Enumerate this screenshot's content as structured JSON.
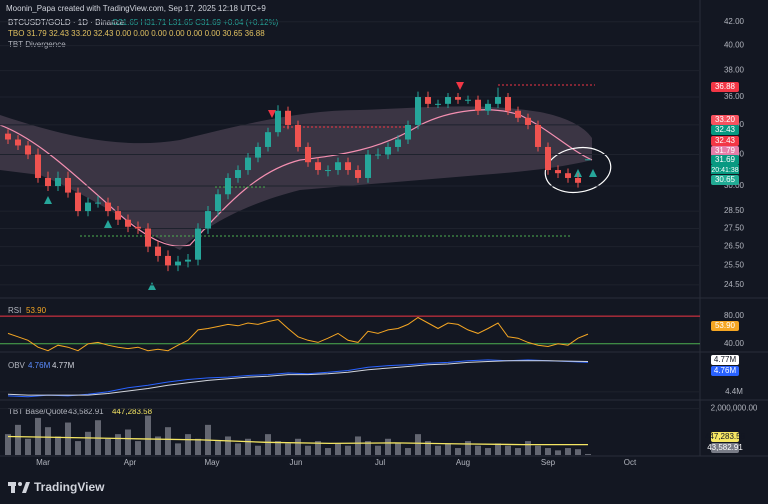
{
  "header": {
    "credit": "Moonin_Papa created with TradingView.com, Sep 17, 2025 12:18 UTC+9",
    "brand": "TradingView"
  },
  "chart_data": [
    {
      "type": "candlestick",
      "title": "BTCUSDT/GOLD · 1D · Binance",
      "ohlc_label": "O31.65 H31.71 L31.65 C31.69 +0.04 (+0.12%)",
      "indicators": [
        "TBO 31.79 32.43 33.20 32.43 0.00 0.00 0.00 0.00 0.00 0.00 30.65 36.88",
        "TBT Divergence"
      ],
      "open": [
        33.4,
        33.0,
        32.6,
        32.0,
        30.5,
        30.0,
        30.5,
        29.6,
        28.5,
        29.0,
        29.0,
        28.5,
        28.0,
        27.6,
        27.5,
        26.5,
        26.0,
        25.5,
        25.7,
        25.8,
        27.5,
        28.5,
        29.5,
        30.5,
        31.0,
        31.8,
        32.5,
        33.5,
        35.0,
        34.0,
        32.5,
        31.5,
        31.0,
        31.0,
        31.5,
        31.0,
        30.5,
        32.0,
        32.0,
        32.5,
        33.0,
        34.0,
        36.0,
        35.5,
        35.5,
        36.0,
        35.8,
        35.8,
        35.0,
        35.5,
        36.0,
        35.0,
        34.5,
        34.0,
        32.5,
        31.0,
        30.8,
        30.5,
        31.65
      ],
      "high": [
        33.7,
        33.3,
        32.9,
        32.4,
        30.9,
        30.9,
        30.9,
        29.9,
        29.3,
        29.4,
        29.3,
        28.8,
        28.3,
        27.9,
        27.8,
        26.8,
        26.3,
        26.0,
        26.1,
        27.8,
        28.8,
        29.8,
        30.8,
        31.3,
        32.1,
        32.8,
        33.8,
        35.4,
        35.3,
        34.3,
        32.8,
        31.8,
        31.3,
        31.8,
        31.8,
        31.3,
        32.3,
        32.4,
        32.8,
        33.3,
        34.3,
        36.4,
        36.4,
        35.8,
        36.3,
        36.3,
        36.1,
        36.1,
        35.8,
        36.7,
        36.3,
        35.3,
        34.8,
        34.3,
        32.8,
        31.3,
        31.1,
        30.8,
        31.71
      ],
      "low": [
        32.7,
        32.3,
        31.7,
        30.2,
        29.7,
        29.7,
        29.3,
        28.2,
        28.2,
        28.7,
        28.2,
        27.7,
        27.3,
        27.2,
        26.2,
        25.7,
        25.2,
        25.2,
        25.4,
        25.5,
        27.2,
        28.2,
        29.2,
        30.2,
        30.7,
        31.5,
        32.2,
        33.2,
        33.7,
        32.2,
        31.2,
        30.7,
        30.6,
        30.7,
        30.7,
        30.2,
        30.2,
        31.7,
        31.7,
        32.2,
        32.7,
        33.7,
        35.2,
        35.2,
        35.2,
        35.5,
        35.5,
        34.7,
        34.7,
        35.2,
        34.7,
        34.2,
        33.7,
        32.2,
        30.7,
        30.5,
        30.2,
        29.9,
        31.65
      ],
      "close": [
        33.0,
        32.6,
        32.0,
        30.5,
        30.0,
        30.5,
        29.6,
        28.5,
        29.0,
        29.0,
        28.5,
        28.0,
        27.6,
        27.5,
        26.5,
        26.0,
        25.5,
        25.7,
        25.8,
        27.5,
        28.5,
        29.5,
        30.5,
        31.0,
        31.8,
        32.5,
        33.5,
        35.0,
        34.0,
        32.5,
        31.5,
        31.0,
        31.0,
        31.5,
        31.0,
        30.5,
        32.0,
        32.0,
        32.5,
        33.0,
        34.0,
        36.0,
        35.5,
        35.5,
        36.0,
        35.8,
        35.8,
        35.0,
        35.5,
        36.0,
        35.0,
        34.5,
        34.0,
        32.5,
        31.0,
        30.8,
        30.5,
        30.2,
        31.69
      ],
      "up_color": "#26a69a",
      "down_color": "#ef5350",
      "log_scale": true,
      "ylim": [
        24.0,
        43.2
      ],
      "yticks": [
        {
          "value": 42,
          "label": "42.00"
        },
        {
          "value": 40,
          "label": "40.00"
        },
        {
          "value": 38,
          "label": "38.00"
        },
        {
          "value": 36,
          "label": "36.00"
        },
        {
          "value": 34,
          "label": "34.00"
        },
        {
          "value": 32,
          "label": "32.00"
        },
        {
          "value": 30,
          "label": "30.00"
        },
        {
          "value": 28.5,
          "label": "28.50"
        },
        {
          "value": 27.5,
          "label": "27.50"
        },
        {
          "value": 26.5,
          "label": "26.50"
        },
        {
          "value": 25.5,
          "label": "25.50"
        },
        {
          "value": 24.5,
          "label": "24.50"
        }
      ],
      "xlim": [
        -0.8,
        69.2
      ],
      "xticks": [
        {
          "value": 3.5,
          "label": "Mar"
        },
        {
          "value": 12.2,
          "label": "Apr"
        },
        {
          "value": 20.4,
          "label": "May"
        },
        {
          "value": 28.8,
          "label": "Jun"
        },
        {
          "value": 37.2,
          "label": "Jul"
        },
        {
          "value": 45.5,
          "label": "Aug"
        },
        {
          "value": 54,
          "label": "Sep"
        },
        {
          "value": 62.2,
          "label": "Oct"
        }
      ],
      "price_tags": [
        {
          "label": "36.88",
          "color": "#f23645"
        },
        {
          "label": "33.20",
          "color": "#f7525f"
        },
        {
          "label": "32.43",
          "color": "#089981"
        },
        {
          "label": "32.43",
          "color": "#f23645"
        },
        {
          "label": "31.79",
          "color": "#e57ea9"
        },
        {
          "label": "31.69",
          "color": "#089981"
        },
        {
          "label": "30.65",
          "color": "#22ab94"
        }
      ],
      "countdown": "20:41:38"
    },
    {
      "type": "line",
      "title": "RSI",
      "color": "#f5a623",
      "last_label": "53.90",
      "values": [
        55,
        50,
        45,
        35,
        30,
        38,
        35,
        30,
        40,
        42,
        38,
        35,
        33,
        35,
        30,
        32,
        30,
        38,
        45,
        60,
        62,
        65,
        68,
        66,
        70,
        68,
        72,
        75,
        62,
        50,
        45,
        42,
        48,
        55,
        45,
        42,
        58,
        55,
        60,
        62,
        68,
        78,
        70,
        62,
        70,
        68,
        60,
        55,
        62,
        70,
        50,
        48,
        42,
        38,
        36,
        40,
        38,
        48,
        53.9
      ],
      "ylim": [
        31,
        96
      ],
      "yticks": [
        {
          "value": 80,
          "label": "80.00",
          "color": "#f23645"
        },
        {
          "value": 40,
          "label": "40.00",
          "color": "#4caf50"
        }
      ]
    },
    {
      "type": "multiline",
      "title": "OBV",
      "series": [
        {
          "color": "#2962ff",
          "last_label": "4.76M",
          "values": [
            4350000,
            4340000,
            4360000,
            4350000,
            4370000,
            4400000,
            4450000,
            4480000,
            4520000,
            4550000,
            4570000,
            4580000,
            4600000,
            4610000,
            4630000,
            4620000,
            4640000,
            4660000,
            4700000,
            4720000,
            4730000,
            4750000,
            4760000,
            4780000,
            4790000,
            4780000,
            4790000,
            4780000,
            4770000,
            4760000
          ]
        },
        {
          "color": "#d1d4dc",
          "last_label": "4.77M",
          "values": [
            4370000,
            4360000,
            4360000,
            4360000,
            4360000,
            4380000,
            4410000,
            4440000,
            4480000,
            4510000,
            4540000,
            4560000,
            4580000,
            4590000,
            4610000,
            4610000,
            4620000,
            4640000,
            4670000,
            4690000,
            4710000,
            4730000,
            4740000,
            4760000,
            4770000,
            4780000,
            4780000,
            4780000,
            4775000,
            4770000
          ]
        }
      ],
      "ylim": [
        4300000,
        4850000
      ],
      "yticks": [
        {
          "value": 4400000,
          "label": "4.4M"
        }
      ]
    },
    {
      "type": "volume",
      "title": "TBT Base/Quote",
      "bar_color": "#787b86",
      "ma_color": "#f5e663",
      "values": [
        900000,
        1300000,
        700000,
        1600000,
        1200000,
        800000,
        1400000,
        600000,
        1000000,
        1500000,
        700000,
        900000,
        1100000,
        600000,
        1700000,
        800000,
        1200000,
        500000,
        900000,
        700000,
        1300000,
        600000,
        800000,
        500000,
        700000,
        400000,
        900000,
        600000,
        500000,
        700000,
        400000,
        600000,
        300000,
        500000,
        400000,
        800000,
        600000,
        400000,
        700000,
        500000,
        300000,
        900000,
        600000,
        400000,
        500000,
        300000,
        600000,
        400000,
        300000,
        500000,
        400000,
        300000,
        600000,
        400000,
        300000,
        200000,
        300000,
        250000,
        43582.91
      ],
      "last_label": "43,582.91",
      "ma": [
        800000,
        750000,
        700000,
        650000,
        550000,
        500000,
        520000,
        480000,
        450000,
        447283.58
      ],
      "ma_last_label": "447,283.58",
      "ylim": [
        0,
        2200000
      ],
      "yticks": [
        {
          "value": 2000000,
          "label": "2,000,000.00"
        }
      ]
    }
  ]
}
